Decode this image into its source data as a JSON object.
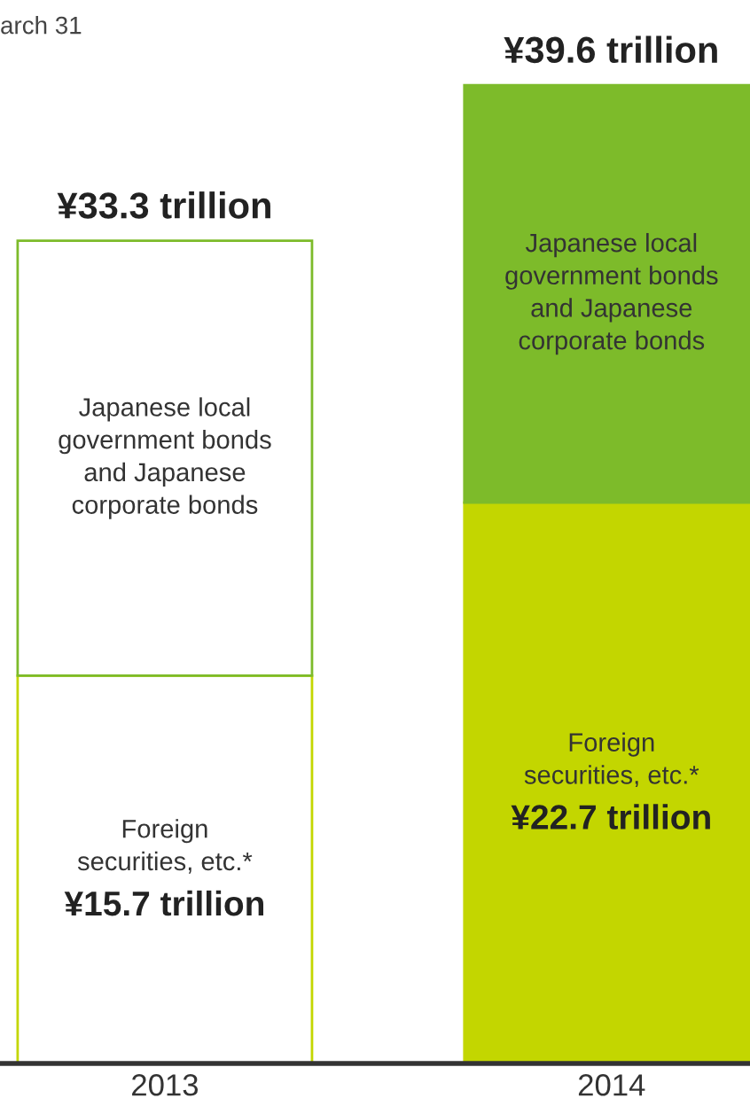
{
  "chart_data": {
    "type": "bar",
    "stacked": true,
    "categories": [
      "2013",
      "2014"
    ],
    "series": [
      {
        "name": "Foreign\nsecurities, etc.*",
        "color": "#c3d600",
        "colors": [
          "#ffffff",
          "#c3d600"
        ],
        "values": [
          15.7,
          22.7
        ],
        "value_labels": [
          "¥15.7 trillion",
          "¥22.7 trillion"
        ]
      },
      {
        "name": "Japanese local\ngovernment bonds\nand Japanese\ncorporate bonds",
        "color": "#7dbb2a",
        "colors": [
          "#ffffff",
          "#7dbb2a"
        ],
        "values": [
          17.6,
          16.9
        ]
      }
    ],
    "totals": [
      "¥33.3 trillion",
      "¥39.6 trillion"
    ],
    "annotations": [
      "arch 31"
    ],
    "legend": false,
    "grid": false
  }
}
